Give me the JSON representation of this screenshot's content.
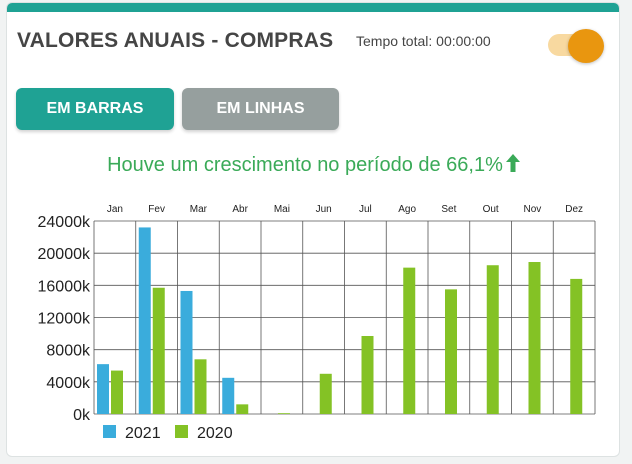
{
  "header": {
    "title": "VALORES ANUAIS - COMPRAS",
    "timer_label": "Tempo total: 00:00:00"
  },
  "toggle": {
    "state": "on",
    "color": "#e9960f"
  },
  "buttons": {
    "bars_label": "EM BARRAS",
    "lines_label": "EM LINHAS"
  },
  "growth": {
    "text": "Houve um crescimento no período de 66,1%",
    "icon": "arrow-up-icon"
  },
  "colors": {
    "primary": "#1fa294",
    "secondary_button": "#969f9e",
    "series_2021": "#3aacdc",
    "series_2020": "#84c225",
    "growth_text": "#3aaa58",
    "accent": "#e9960f"
  },
  "chart_data": {
    "type": "bar",
    "categories": [
      "Jan",
      "Fev",
      "Mar",
      "Abr",
      "Mai",
      "Jun",
      "Jul",
      "Ago",
      "Set",
      "Out",
      "Nov",
      "Dez"
    ],
    "series": [
      {
        "name": "2021",
        "values": [
          6200,
          23200,
          15300,
          4500,
          0,
          null,
          null,
          null,
          null,
          null,
          null,
          null
        ]
      },
      {
        "name": "2020",
        "values": [
          5400,
          15700,
          6800,
          1200,
          100,
          5000,
          9700,
          18200,
          15500,
          18500,
          18900,
          16800
        ]
      }
    ],
    "y_ticks": [
      "0k",
      "4000k",
      "8000k",
      "12000k",
      "16000k",
      "20000k",
      "24000k"
    ],
    "ylim": [
      0,
      24000
    ],
    "grid": true,
    "legend_position": "bottom-left",
    "x_axis_position": "top"
  }
}
